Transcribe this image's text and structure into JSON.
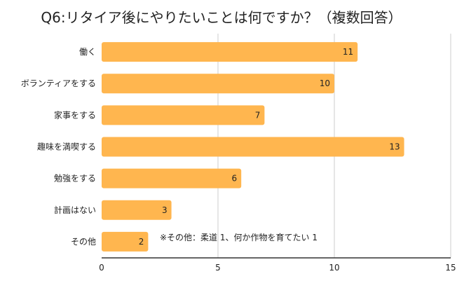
{
  "chart_data": {
    "type": "bar",
    "orientation": "horizontal",
    "title": "Q6:リタイア後にやりたいことは何ですか？（複数回答）",
    "categories": [
      "働く",
      "ボランティアをする",
      "家事をする",
      "趣味を満喫する",
      "勉強をする",
      "計画はない",
      "その他"
    ],
    "values": [
      11,
      10,
      7,
      13,
      6,
      3,
      2
    ],
    "xlim": [
      0,
      15
    ],
    "xticks": [
      0,
      5,
      10,
      15
    ],
    "grid": true,
    "annotation": "※その他：柔道 1、何か作物を育てたい 1",
    "bar_color": "#FFB64F",
    "xlabel": "",
    "ylabel": ""
  }
}
